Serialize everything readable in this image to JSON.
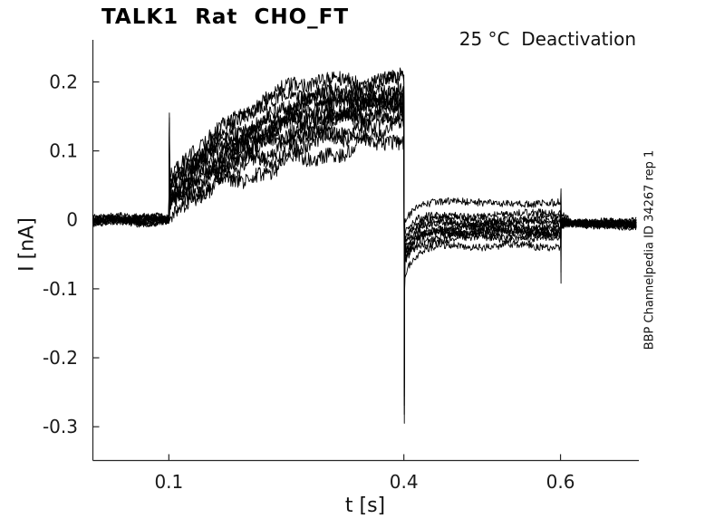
{
  "chart_data": {
    "type": "line",
    "title": "TALK1  Rat  CHO_FT",
    "annotation": "25 °C  Deactivation",
    "side_label": "BBP Channelpedia ID 34267 rep 1",
    "xlabel": "t [s]",
    "ylabel": "I [nA]",
    "xlim": [
      0.003,
      0.7
    ],
    "ylim": [
      -0.349,
      0.261
    ],
    "x_ticks": [
      0.1,
      0.4,
      0.6
    ],
    "x_tick_labels": [
      "0.1",
      "0.4",
      "0.6"
    ],
    "y_ticks": [
      0.2,
      0.1,
      0,
      -0.1,
      -0.2,
      -0.3
    ],
    "y_tick_labels": [
      "0.2",
      "0.1",
      "0",
      "-0.1",
      "-0.2",
      "-0.3"
    ],
    "grid": false,
    "legend": "none",
    "line_color": "#000000",
    "axis_color": "#262626",
    "n_sweeps": 12,
    "protocol": {
      "baseline_start_s": 0.003,
      "step_on_s": 0.1,
      "step_off_s": 0.4,
      "post_step_s": 0.6,
      "end_s": 0.697,
      "baseline_nA": 0,
      "onset_spike_max_nA": 0.155,
      "offset_spike_min_nA": -0.295,
      "spike_0p6_up_nA": 0.045,
      "spike_0p6_down_nA": -0.1,
      "final_level_nA": -0.006
    },
    "sweeps": [
      {
        "onset_nA": 0.05,
        "peak_nA": 0.21,
        "tau_s": 0.085,
        "tail_nA": 0.025
      },
      {
        "onset_nA": 0.045,
        "peak_nA": 0.2,
        "tau_s": 0.095,
        "tail_nA": 0.008
      },
      {
        "onset_nA": 0.04,
        "peak_nA": 0.192,
        "tau_s": 0.105,
        "tail_nA": 0.002
      },
      {
        "onset_nA": 0.038,
        "peak_nA": 0.185,
        "tau_s": 0.115,
        "tail_nA": -0.003
      },
      {
        "onset_nA": 0.035,
        "peak_nA": 0.18,
        "tau_s": 0.125,
        "tail_nA": -0.006
      },
      {
        "onset_nA": 0.032,
        "peak_nA": 0.175,
        "tau_s": 0.135,
        "tail_nA": -0.01
      },
      {
        "onset_nA": 0.03,
        "peak_nA": 0.17,
        "tau_s": 0.145,
        "tail_nA": -0.013
      },
      {
        "onset_nA": 0.028,
        "peak_nA": 0.165,
        "tau_s": 0.155,
        "tail_nA": -0.016
      },
      {
        "onset_nA": 0.025,
        "peak_nA": 0.158,
        "tau_s": 0.165,
        "tail_nA": -0.019
      },
      {
        "onset_nA": 0.022,
        "peak_nA": 0.148,
        "tau_s": 0.18,
        "tail_nA": -0.022
      },
      {
        "onset_nA": 0.018,
        "peak_nA": 0.135,
        "tau_s": 0.195,
        "tail_nA": -0.027
      },
      {
        "onset_nA": 0.012,
        "peak_nA": 0.115,
        "tau_s": 0.215,
        "tail_nA": -0.038
      }
    ],
    "noise_nA": {
      "baseline": 0.004,
      "rise": 0.011,
      "tail": 0.0055,
      "final": 0.0045
    }
  }
}
